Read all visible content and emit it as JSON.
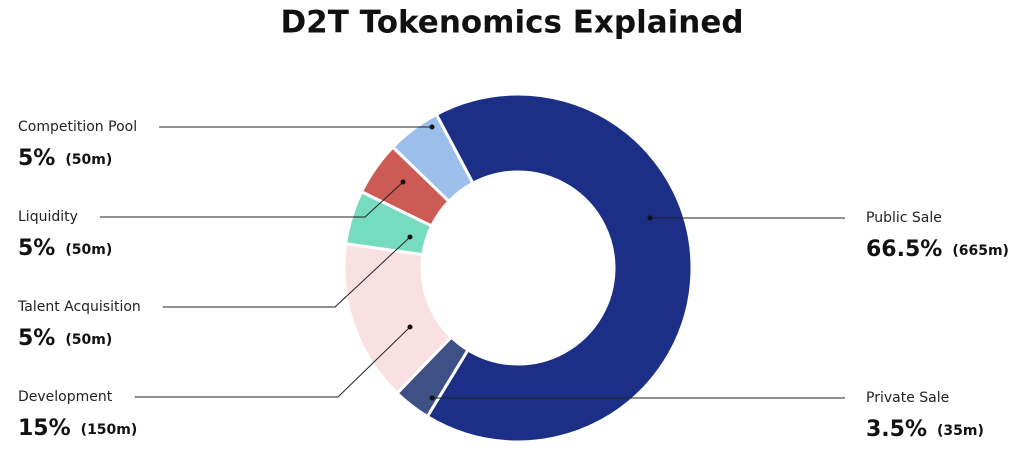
{
  "chart_data": {
    "type": "pie",
    "title": "D2T Tokenomics Explained",
    "categories": [
      "Public Sale",
      "Private Sale",
      "Development",
      "Talent Acquisition",
      "Liquidity",
      "Competition Pool"
    ],
    "values": [
      66.5,
      3.5,
      15,
      5,
      5,
      5
    ],
    "value_labels": [
      "66.5%",
      "3.5%",
      "15%",
      "5%",
      "5%",
      "5%"
    ],
    "amount_labels": [
      "(665m)",
      "(35m)",
      "(150m)",
      "(50m)",
      "(50m)",
      "(50m)"
    ],
    "colors": [
      "#1a2f85",
      "#3e5086",
      "#f9e1e1",
      "#77dbbf",
      "#cc5b56",
      "#9cbeea"
    ]
  }
}
